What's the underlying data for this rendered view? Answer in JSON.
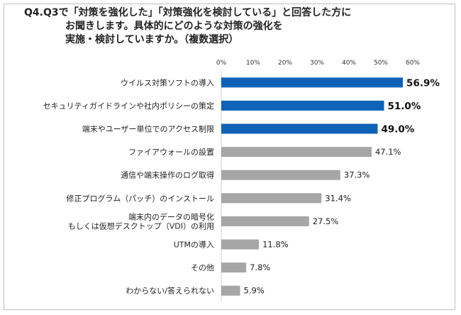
{
  "title": {
    "line1": "Q4.Q3で「対策を強化した」「対策強化を検討している」と回答した方に",
    "line2": "お聞きします。具体的にどのような対策の強化を",
    "line3": "実施・検討していますか。（複数選択）"
  },
  "chart_data": {
    "type": "bar",
    "orientation": "horizontal",
    "categories": [
      [
        "ウイルス対策ソフトの導入"
      ],
      [
        "セキュリティガイドラインや社内ポリシーの策定"
      ],
      [
        "端末やユーザー単位でのアクセス制限"
      ],
      [
        "ファイアウォールの設置"
      ],
      [
        "通信や端末操作のログ取得"
      ],
      [
        "修正プログラム（パッチ）のインストール"
      ],
      [
        "端末内のデータの暗号化",
        "もしくは仮想デスクトップ（VDI）の利用"
      ],
      [
        "UTMの導入"
      ],
      [
        "その他"
      ],
      [
        "わからない/答えられない"
      ]
    ],
    "values": [
      56.9,
      51.0,
      49.0,
      47.1,
      37.3,
      31.4,
      27.5,
      11.8,
      7.8,
      5.9
    ],
    "value_labels": [
      "56.9%",
      "51.0%",
      "49.0%",
      "47.1%",
      "37.3%",
      "31.4%",
      "27.5%",
      "11.8%",
      "7.8%",
      "5.9%"
    ],
    "highlighted": [
      true,
      true,
      true,
      false,
      false,
      false,
      false,
      false,
      false,
      false
    ],
    "xlim": [
      0,
      60
    ],
    "ticks": [
      "0%",
      "10%",
      "20%",
      "30%",
      "40%",
      "50%",
      "60%"
    ],
    "grid": false,
    "colors": {
      "highlight": "#0e62b8",
      "normal": "#a6a6a6"
    }
  }
}
